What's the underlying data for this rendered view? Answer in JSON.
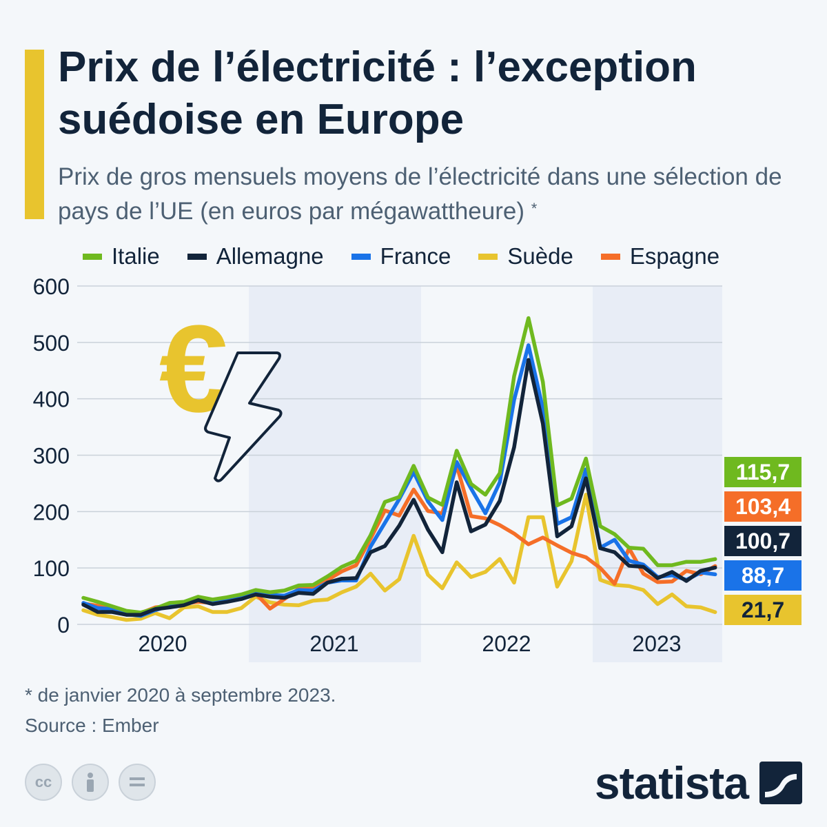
{
  "title": "Prix de l’électricité : l’exception suédoise en Europe",
  "subtitle": "Prix de gros mensuels moyens de l’électricité dans une sélection de pays de l’UE (en euros par mégawattheure)",
  "subtitle_marker": "*",
  "footnote": "* de janvier 2020 à septembre 2023.",
  "source": "Source : Ember",
  "brand": "statista",
  "license_icons": [
    "cc-icon",
    "person-icon",
    "equals-icon"
  ],
  "colors": {
    "background": "#f4f7fa",
    "accent": "#e8c42e",
    "band": "#e8edf6",
    "grid": "#c9d1d9",
    "text": "#12243a"
  },
  "chart_data": {
    "type": "line",
    "x_unit": "month",
    "x_start": "2020-01",
    "x_end": "2023-09",
    "x_tick_labels": [
      "2020",
      "2021",
      "2022",
      "2023"
    ],
    "ylim": [
      0,
      600
    ],
    "y_ticks": [
      0,
      100,
      200,
      300,
      400,
      500,
      600
    ],
    "grid": true,
    "legend_position": "top",
    "shaded_years": [
      "2021",
      "2023"
    ],
    "series": [
      {
        "name": "Italie",
        "color": "#6fb91f",
        "end_label": "115,7",
        "values": [
          47,
          40,
          32,
          24,
          21,
          28,
          38,
          40,
          49,
          44,
          48,
          53,
          61,
          57,
          60,
          69,
          70,
          85,
          102,
          113,
          158,
          217,
          226,
          281,
          225,
          212,
          308,
          249,
          230,
          268,
          440,
          543,
          430,
          211,
          223,
          294,
          174,
          160,
          136,
          134,
          105,
          105,
          111,
          111,
          115.7
        ]
      },
      {
        "name": "Allemagne",
        "color": "#12243a",
        "end_label": "100,7",
        "values": [
          35,
          22,
          22,
          17,
          17,
          27,
          30,
          34,
          43,
          36,
          40,
          45,
          53,
          49,
          47,
          56,
          54,
          74,
          81,
          82,
          128,
          139,
          175,
          221,
          168,
          128,
          252,
          165,
          177,
          219,
          314,
          469,
          356,
          156,
          174,
          259,
          135,
          128,
          104,
          102,
          82,
          93,
          77,
          95,
          100.7
        ]
      },
      {
        "name": "France",
        "color": "#1a73e8",
        "end_label": "88,7",
        "values": [
          38,
          29,
          27,
          18,
          15,
          25,
          33,
          37,
          44,
          39,
          42,
          49,
          56,
          52,
          51,
          61,
          60,
          74,
          78,
          78,
          138,
          180,
          222,
          270,
          218,
          185,
          288,
          241,
          197,
          252,
          398,
          495,
          383,
          178,
          190,
          275,
          136,
          150,
          113,
          106,
          84,
          87,
          79,
          92,
          88.7
        ]
      },
      {
        "name": "Suède",
        "color": "#e8c42e",
        "end_label": "21,7",
        "values": [
          25,
          17,
          13,
          8,
          10,
          20,
          11,
          30,
          32,
          22,
          22,
          29,
          49,
          39,
          35,
          34,
          42,
          44,
          57,
          67,
          90,
          60,
          80,
          157,
          88,
          64,
          110,
          84,
          93,
          116,
          74,
          190,
          190,
          67,
          112,
          230,
          79,
          70,
          68,
          61,
          36,
          53,
          32,
          30,
          21.7
        ]
      },
      {
        "name": "Espagne",
        "color": "#f56e28",
        "end_label": "103,4",
        "values": [
          37,
          33,
          26,
          18,
          20,
          30,
          33,
          37,
          40,
          38,
          42,
          46,
          55,
          28,
          45,
          63,
          65,
          79,
          94,
          105,
          152,
          202,
          193,
          239,
          201,
          197,
          282,
          192,
          188,
          176,
          161,
          142,
          154,
          140,
          127,
          119,
          100,
          72,
          135,
          90,
          75,
          76,
          95,
          89,
          103.4
        ]
      }
    ]
  }
}
